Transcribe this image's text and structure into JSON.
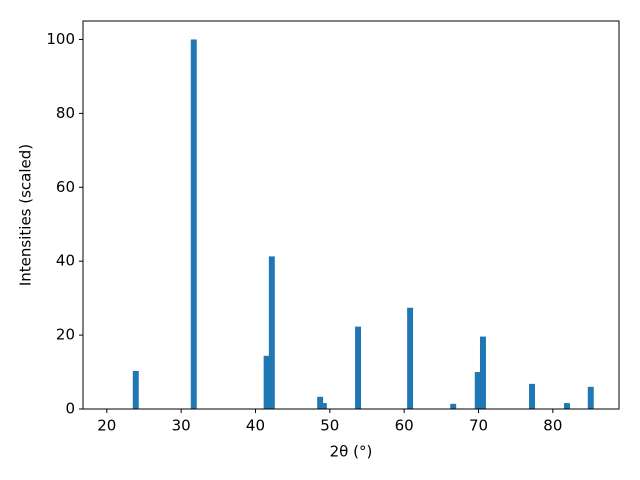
{
  "chart_data": {
    "type": "bar",
    "xlabel": "2θ (°)",
    "ylabel": "Intensities (scaled)",
    "x": [
      23.9,
      31.7,
      41.5,
      42.2,
      48.7,
      49.2,
      53.8,
      60.8,
      66.6,
      69.9,
      70.6,
      77.2,
      81.9,
      85.1
    ],
    "values": [
      10.3,
      100,
      14.4,
      41.3,
      3.3,
      1.6,
      22.3,
      27.4,
      1.4,
      10,
      19.6,
      6.8,
      1.6,
      6
    ],
    "bar_width": 0.8,
    "color": "#1f77b4",
    "xlim": [
      16.8,
      88.9
    ],
    "ylim": [
      0,
      105
    ],
    "xticks": [
      20,
      30,
      40,
      50,
      60,
      70,
      80
    ],
    "yticks": [
      0,
      20,
      40,
      60,
      80,
      100
    ]
  }
}
